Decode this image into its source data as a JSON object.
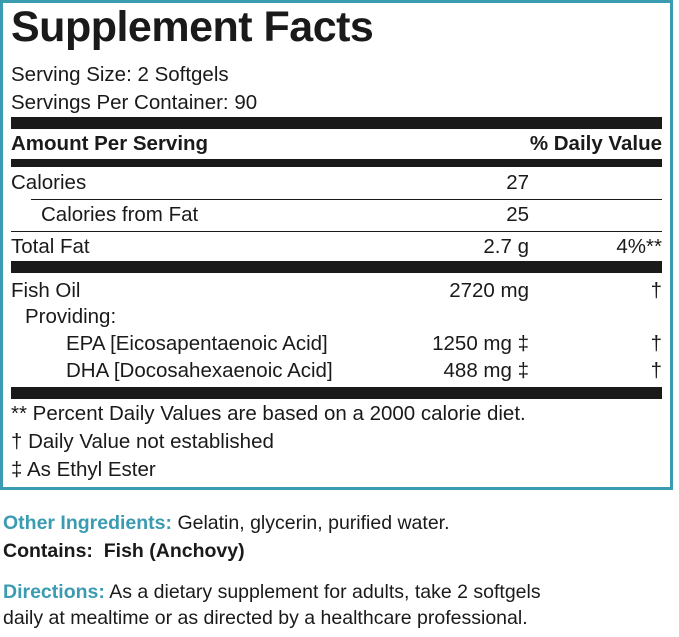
{
  "colors": {
    "accent": "#3a9bb1",
    "text": "#1a1a1a",
    "background": "#ffffff"
  },
  "panel": {
    "title": "Supplement Facts",
    "serving_size": "Serving Size: 2 Softgels",
    "servings_per_container": "Servings Per Container: 90",
    "header": {
      "left": "Amount Per Serving",
      "right": "% Daily Value"
    },
    "rows": [
      {
        "name": "Calories",
        "amount": "27",
        "dv": ""
      },
      {
        "name": "Calories from Fat",
        "amount": "25",
        "dv": ""
      },
      {
        "name": "Total Fat",
        "amount": "2.7 g",
        "dv": "4%**"
      },
      {
        "name": "Fish Oil",
        "amount": "2720 mg",
        "dv": "†"
      },
      {
        "name": "Providing:",
        "amount": "",
        "dv": ""
      },
      {
        "name": "EPA [Eicosapentaenoic Acid]",
        "amount": "1250 mg ‡",
        "dv": "†"
      },
      {
        "name": "DHA [Docosahexaenoic Acid]",
        "amount": "488 mg ‡",
        "dv": "†"
      }
    ],
    "footnotes": [
      "** Percent Daily Values are based on a 2000 calorie diet.",
      "† Daily Value not established",
      "‡ As Ethyl Ester"
    ]
  },
  "other_ingredients": {
    "label": "Other Ingredients:",
    "text": " Gelatin, glycerin, purified water."
  },
  "contains": {
    "label": "Contains:",
    "text": "  Fish (Anchovy)"
  },
  "directions": {
    "label": "Directions:",
    "line1": " As a dietary supplement for adults, take 2 softgels",
    "line2": "daily at mealtime or as directed by a healthcare professional."
  }
}
